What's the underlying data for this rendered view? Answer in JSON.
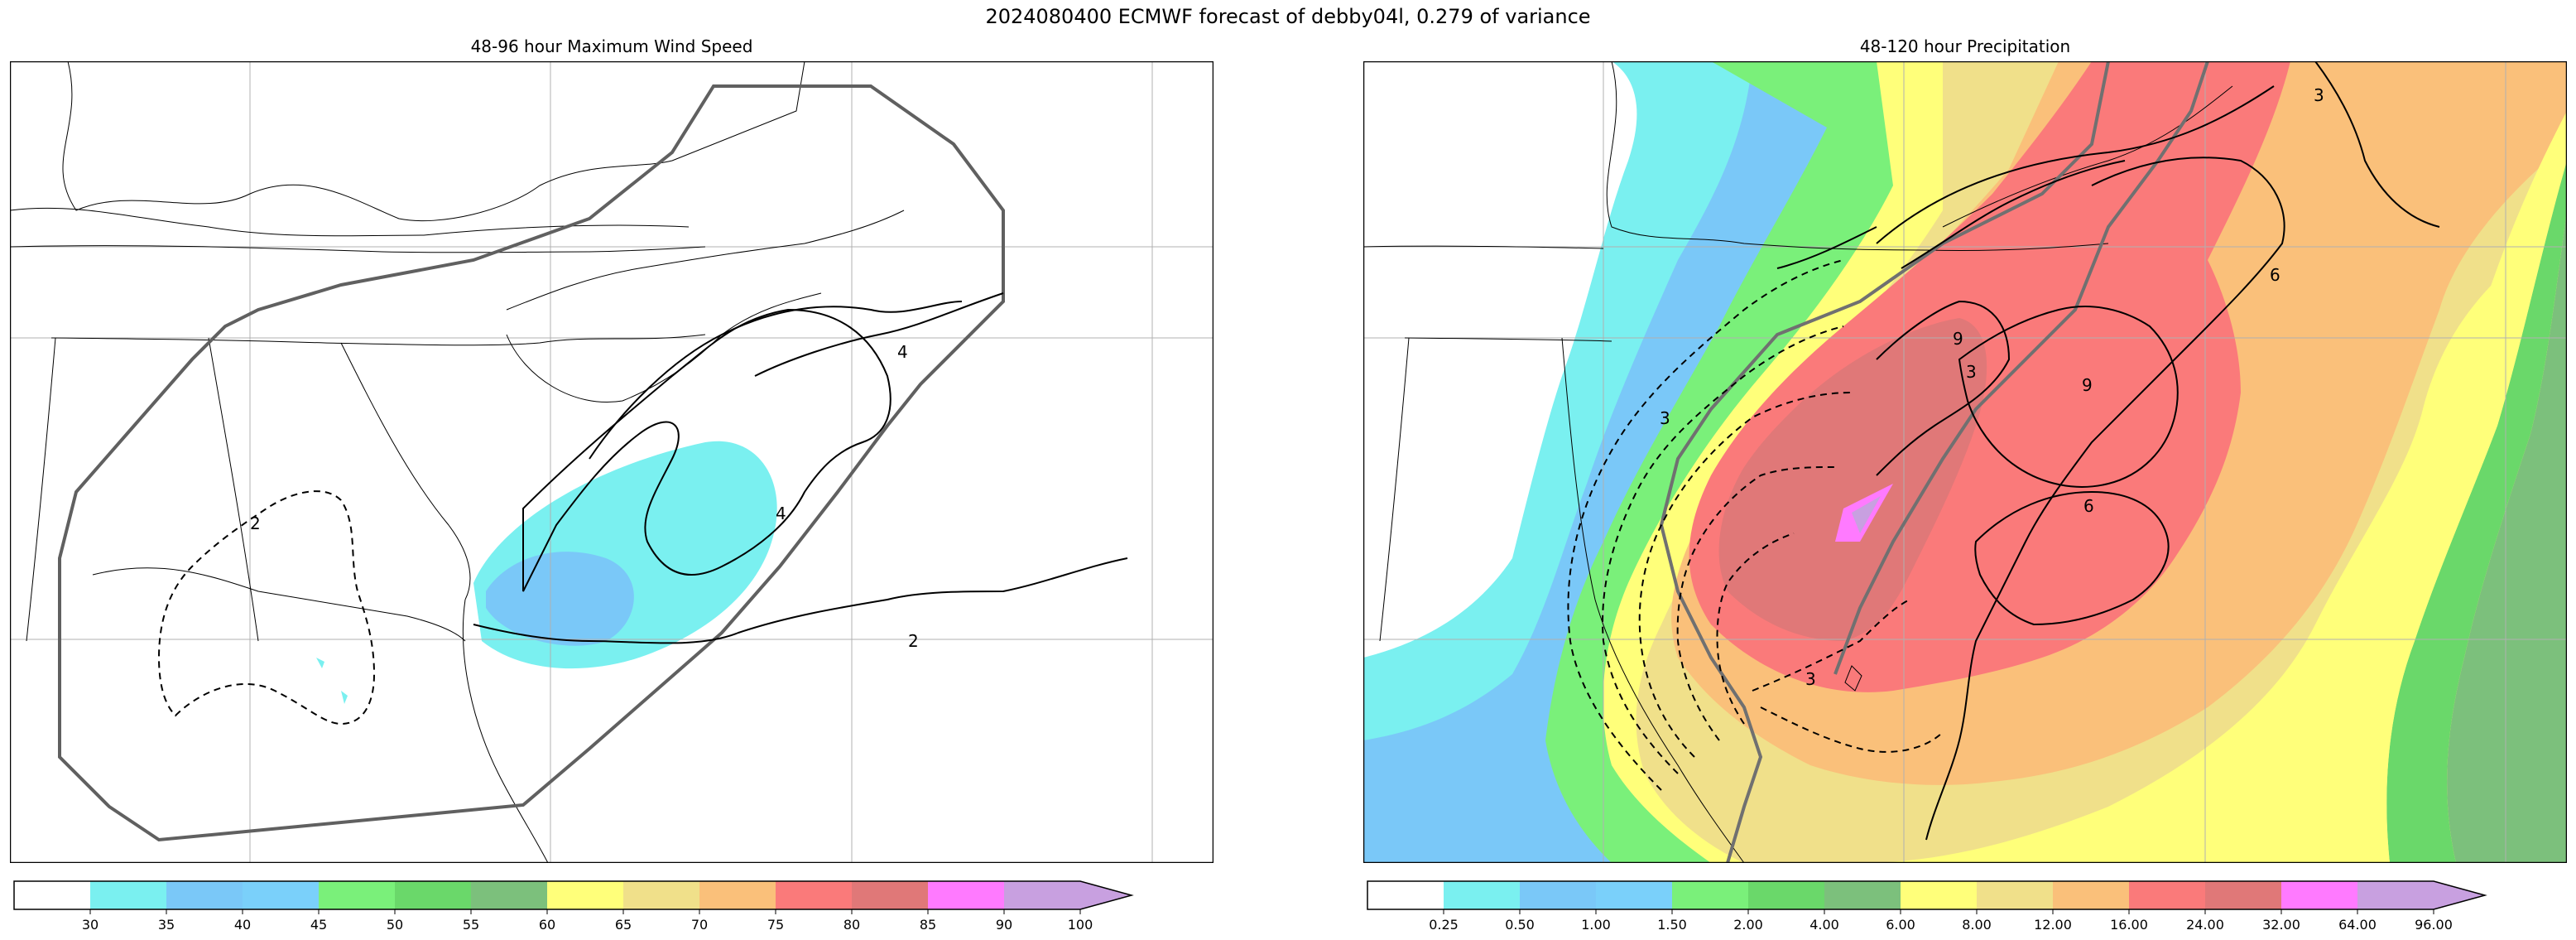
{
  "figure": {
    "title": "2024080400 ECMWF forecast of debby04l, 0.279 of variance"
  },
  "panels": [
    {
      "title": "48-96 hour Maximum Wind Speed",
      "contour_labels": [
        "2",
        "4",
        "4",
        "2"
      ],
      "colorbar": {
        "ticks": [
          "30",
          "35",
          "40",
          "45",
          "50",
          "55",
          "60",
          "65",
          "70",
          "75",
          "80",
          "85",
          "90",
          "100"
        ],
        "colors": [
          "#ffffff",
          "#7af0f0",
          "#7ac8f8",
          "#7ad0fa",
          "#7af07a",
          "#6ad86a",
          "#7cc07c",
          "#ffff7a",
          "#f0e08a",
          "#fac07a",
          "#fa7a7a",
          "#e07878",
          "#ff7aff",
          "#c8a0e0"
        ]
      }
    },
    {
      "title": "48-120 hour Precipitation",
      "contour_labels": [
        "3",
        "3",
        "3",
        "6",
        "9",
        "9",
        "6",
        "3"
      ],
      "colorbar": {
        "ticks": [
          "0.25",
          "0.50",
          "1.00",
          "1.50",
          "2.00",
          "4.00",
          "6.00",
          "8.00",
          "12.00",
          "16.00",
          "24.00",
          "32.00",
          "64.00",
          "96.00"
        ],
        "colors": [
          "#ffffff",
          "#7af0f0",
          "#7ac8f8",
          "#7ad0fa",
          "#7af07a",
          "#6ad86a",
          "#7cc07c",
          "#ffff7a",
          "#f0e08a",
          "#fac07a",
          "#fa7a7a",
          "#e07878",
          "#ff7aff",
          "#c8a0e0"
        ]
      }
    }
  ]
}
